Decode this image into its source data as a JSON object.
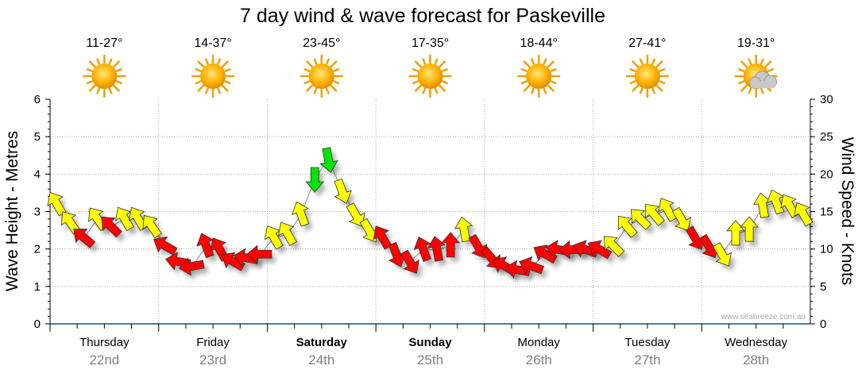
{
  "chart_data": {
    "type": "scatter",
    "title": "7 day wind & wave forecast for Paskeville",
    "ylabel_left": "Wave Height - Metres",
    "ylabel_right": "Wind Speed - Knots",
    "ylim_left": [
      0,
      6
    ],
    "yticks_left": [
      "0",
      "1",
      "2",
      "3",
      "4",
      "5",
      "6"
    ],
    "ylim_right": [
      0,
      30
    ],
    "yticks_right": [
      "0",
      "5",
      "10",
      "15",
      "20",
      "25",
      "30"
    ],
    "grid": true,
    "watermark": "www.seabreeze.com.au",
    "days": [
      {
        "name": "Thursday",
        "date": "22nd",
        "temps": "11-27°",
        "icon": "sunny-icon",
        "weekend": false
      },
      {
        "name": "Friday",
        "date": "23rd",
        "temps": "14-37°",
        "icon": "sunny-icon",
        "weekend": false
      },
      {
        "name": "Saturday",
        "date": "24th",
        "temps": "23-45°",
        "icon": "sunny-icon",
        "weekend": true
      },
      {
        "name": "Sunday",
        "date": "25th",
        "temps": "17-35°",
        "icon": "sunny-icon",
        "weekend": true
      },
      {
        "name": "Monday",
        "date": "26th",
        "temps": "18-44°",
        "icon": "sunny-icon",
        "weekend": false
      },
      {
        "name": "Tuesday",
        "date": "27th",
        "temps": "27-41°",
        "icon": "sunny-icon",
        "weekend": false
      },
      {
        "name": "Wednesday",
        "date": "28th",
        "temps": "19-31°",
        "icon": "partly-cloudy-icon",
        "weekend": false
      }
    ],
    "colors": {
      "yellow": "#ffff00",
      "red": "#ff0000",
      "green": "#00e600"
    },
    "wind_interval_hours": 3,
    "wind_knots": [
      16,
      13.5,
      11.5,
      14,
      13,
      14,
      14,
      13,
      10.4,
      8.3,
      7.7,
      10.4,
      9.9,
      8.3,
      8.8,
      9.3,
      11.5,
      12,
      14.6,
      19.4,
      22,
      17.8,
      14.6,
      12.5,
      11.5,
      9.3,
      8.3,
      9.9,
      9.9,
      10.4,
      12.5,
      10.4,
      8.8,
      7.7,
      7.2,
      7.7,
      9.3,
      9.9,
      9.9,
      9.9,
      9.9,
      10.4,
      13,
      14,
      14.6,
      15.2,
      14,
      11.5,
      10.4,
      9.3,
      12,
      12.5,
      15.7,
      16.2,
      15.7,
      14.6
    ],
    "wind_direction_deg": [
      -30,
      -35,
      -50,
      -35,
      -45,
      -30,
      -30,
      -35,
      -60,
      -80,
      -100,
      -20,
      -30,
      -60,
      -80,
      -90,
      -30,
      -30,
      -20,
      180,
      170,
      160,
      150,
      150,
      -30,
      160,
      150,
      -20,
      -10,
      0,
      -10,
      150,
      140,
      -60,
      -80,
      -70,
      -60,
      -80,
      -90,
      -70,
      -60,
      -45,
      -40,
      -45,
      -40,
      -30,
      150,
      150,
      150,
      150,
      0,
      0,
      -10,
      -20,
      -30,
      -30
    ],
    "wind_color": [
      "yellow",
      "yellow",
      "red",
      "yellow",
      "red",
      "yellow",
      "yellow",
      "yellow",
      "red",
      "red",
      "red",
      "red",
      "red",
      "red",
      "red",
      "red",
      "yellow",
      "yellow",
      "yellow",
      "green",
      "green",
      "yellow",
      "yellow",
      "yellow",
      "red",
      "red",
      "red",
      "red",
      "red",
      "red",
      "yellow",
      "red",
      "red",
      "red",
      "red",
      "red",
      "red",
      "red",
      "red",
      "red",
      "red",
      "yellow",
      "yellow",
      "yellow",
      "yellow",
      "yellow",
      "yellow",
      "red",
      "red",
      "yellow",
      "yellow",
      "yellow",
      "yellow",
      "yellow",
      "yellow",
      "yellow"
    ]
  }
}
